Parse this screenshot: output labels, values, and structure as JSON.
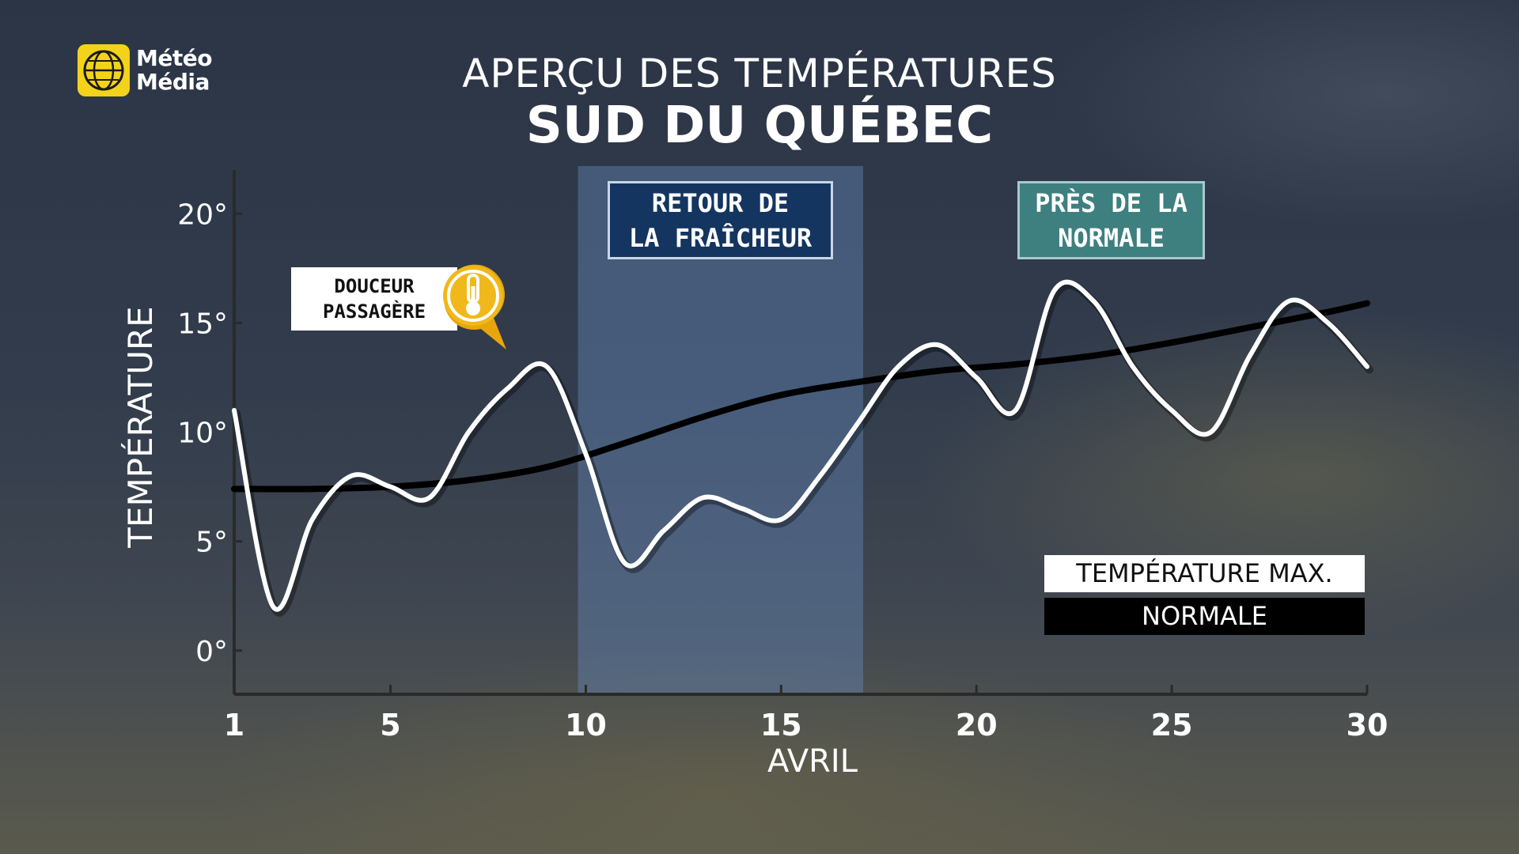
{
  "logo": {
    "line1": "Météo",
    "line2": "Média",
    "icon": "globe-icon",
    "color": "#f3d21c"
  },
  "header": {
    "title": "APERÇU DES TEMPÉRATURES",
    "subtitle": "SUD DU QUÉBEC"
  },
  "annotations": {
    "douceur": {
      "line1": "DOUCEUR",
      "line2": "PASSAGÈRE",
      "icon": "thermometer-icon"
    },
    "fraicheur": {
      "line1": "RETOUR DE",
      "line2": "LA FRAÎCHEUR"
    },
    "normale": {
      "line1": "PRÈS DE LA",
      "line2": "NORMALE"
    }
  },
  "legend": {
    "max": "TEMPÉRATURE MAX.",
    "normal": "NORMALE"
  },
  "chart_data": {
    "type": "line",
    "xlabel": "AVRIL",
    "ylabel": "TEMPÉRATURE",
    "xlim": [
      1,
      30
    ],
    "ylim": [
      -2,
      22
    ],
    "xticks": [
      1,
      5,
      10,
      15,
      20,
      25,
      30
    ],
    "xtick_labels": [
      "1",
      "5",
      "10",
      "15",
      "20",
      "25",
      "30"
    ],
    "yticks": [
      0,
      5,
      10,
      15,
      20
    ],
    "ytick_labels": [
      "0°",
      "5°",
      "10°",
      "15°",
      "20°"
    ],
    "highlight_range": [
      9.8,
      17.1
    ],
    "series": [
      {
        "name": "TEMPÉRATURE MAX.",
        "color": "#ffffff",
        "x": [
          1,
          2,
          3,
          4,
          5,
          6,
          7,
          8,
          9,
          10,
          11,
          12,
          13,
          14,
          15,
          16,
          17,
          18,
          19,
          20,
          21,
          22,
          23,
          24,
          25,
          26,
          27,
          28,
          29,
          30
        ],
        "values": [
          11,
          2,
          6,
          8,
          7.5,
          7,
          10,
          12,
          13,
          9,
          4,
          5.5,
          7,
          6.5,
          6,
          8,
          10.5,
          13,
          14,
          12.5,
          11,
          16.5,
          16,
          13,
          11,
          10,
          13.5,
          16,
          15,
          13
        ]
      },
      {
        "name": "NORMALE",
        "color": "#000000",
        "x": [
          1,
          3,
          5,
          7,
          9,
          11,
          13,
          15,
          17,
          19,
          21,
          23,
          25,
          27,
          29,
          30
        ],
        "values": [
          7.4,
          7.4,
          7.5,
          7.8,
          8.4,
          9.5,
          10.7,
          11.7,
          12.3,
          12.8,
          13.1,
          13.5,
          14.1,
          14.8,
          15.5,
          15.9
        ]
      }
    ]
  }
}
